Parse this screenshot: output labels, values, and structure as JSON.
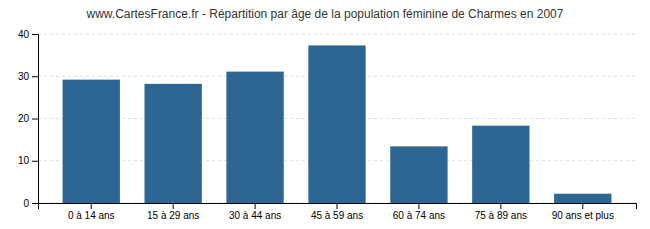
{
  "chart_data": {
    "type": "bar",
    "title": "www.CartesFrance.fr - Répartition par âge de la population féminine de Charmes en 2007",
    "categories": [
      "0 à 14 ans",
      "15 à 29 ans",
      "30 à 44 ans",
      "45 à 59 ans",
      "60 à 74 ans",
      "75 à 89 ans",
      "90 ans et plus"
    ],
    "values": [
      29.2,
      28.2,
      31.1,
      37.3,
      13.4,
      18.3,
      2.2
    ],
    "color": "#2e6693",
    "ylim": [
      0,
      40
    ],
    "yticks": [
      0,
      10,
      20,
      30,
      40
    ],
    "grid": true
  }
}
